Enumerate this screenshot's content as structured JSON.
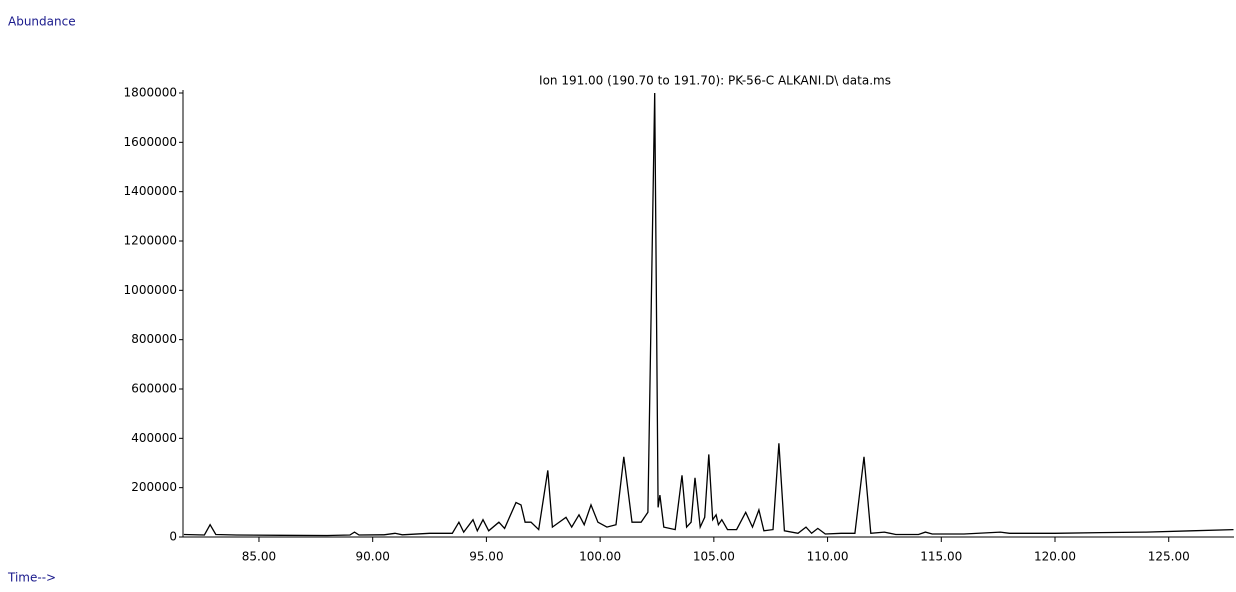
{
  "chart_data": {
    "type": "line",
    "title": "Ion 191.00 (190.70 to 191.70): PK-56-C ALKANI.D\\ data.ms",
    "y_label": "Abundance",
    "x_label": "Time-->",
    "xlim": [
      81.66,
      127.87
    ],
    "ylim": [
      0,
      1800000
    ],
    "xticks": [
      {
        "value": 85,
        "label": "85.00"
      },
      {
        "value": 90,
        "label": "90.00"
      },
      {
        "value": 95,
        "label": "95.00"
      },
      {
        "value": 100,
        "label": "100.00"
      },
      {
        "value": 105,
        "label": "105.00"
      },
      {
        "value": 110,
        "label": "110.00"
      },
      {
        "value": 115,
        "label": "115.00"
      },
      {
        "value": 120,
        "label": "120.00"
      },
      {
        "value": 125,
        "label": "125.00"
      }
    ],
    "yticks": [
      0,
      200000,
      400000,
      600000,
      800000,
      1000000,
      1200000,
      1400000,
      1600000,
      1800000
    ],
    "color": "#000000",
    "x": [
      81.7,
      82.6,
      82.85,
      83.1,
      84,
      86,
      88,
      89.0,
      89.2,
      89.4,
      90.5,
      90.98,
      91.3,
      92.5,
      93.5,
      93.79,
      94.0,
      94.41,
      94.6,
      94.85,
      95.1,
      95.55,
      95.8,
      96.3,
      96.52,
      96.7,
      96.96,
      97.3,
      97.7,
      97.9,
      98.5,
      98.75,
      99.07,
      99.3,
      99.6,
      99.9,
      100.3,
      100.7,
      101.04,
      101.4,
      101.8,
      102.1,
      102.4,
      102.55,
      102.63,
      102.8,
      103.3,
      103.6,
      103.8,
      104.0,
      104.17,
      104.4,
      104.6,
      104.78,
      104.95,
      105.1,
      105.2,
      105.35,
      105.6,
      106.0,
      106.4,
      106.7,
      106.98,
      107.2,
      107.6,
      107.86,
      108.1,
      108.7,
      109.05,
      109.3,
      109.57,
      109.9,
      110.6,
      111.2,
      111.6,
      111.9,
      112.5,
      113.0,
      114.0,
      114.3,
      114.6,
      116,
      117.6,
      118,
      120,
      122,
      124,
      126,
      127.85
    ],
    "values": [
      10000,
      8000,
      50000,
      10000,
      8000,
      7000,
      6000,
      8000,
      20000,
      8000,
      9000,
      15000,
      9000,
      15000,
      15000,
      60000,
      20000,
      70000,
      25000,
      70000,
      25000,
      60000,
      35000,
      140000,
      130000,
      60000,
      60000,
      30000,
      270000,
      40000,
      80000,
      40000,
      90000,
      50000,
      130000,
      60000,
      40000,
      50000,
      325000,
      60000,
      60000,
      100000,
      1800000,
      120000,
      170000,
      40000,
      30000,
      250000,
      40000,
      60000,
      240000,
      40000,
      80000,
      335000,
      70000,
      90000,
      50000,
      70000,
      30000,
      30000,
      100000,
      40000,
      110000,
      25000,
      30000,
      380000,
      25000,
      15000,
      40000,
      15000,
      35000,
      12000,
      15000,
      15000,
      325000,
      15000,
      20000,
      10000,
      10000,
      20000,
      12000,
      12000,
      20000,
      15000,
      15000,
      18000,
      20000,
      25000,
      30000
    ]
  }
}
